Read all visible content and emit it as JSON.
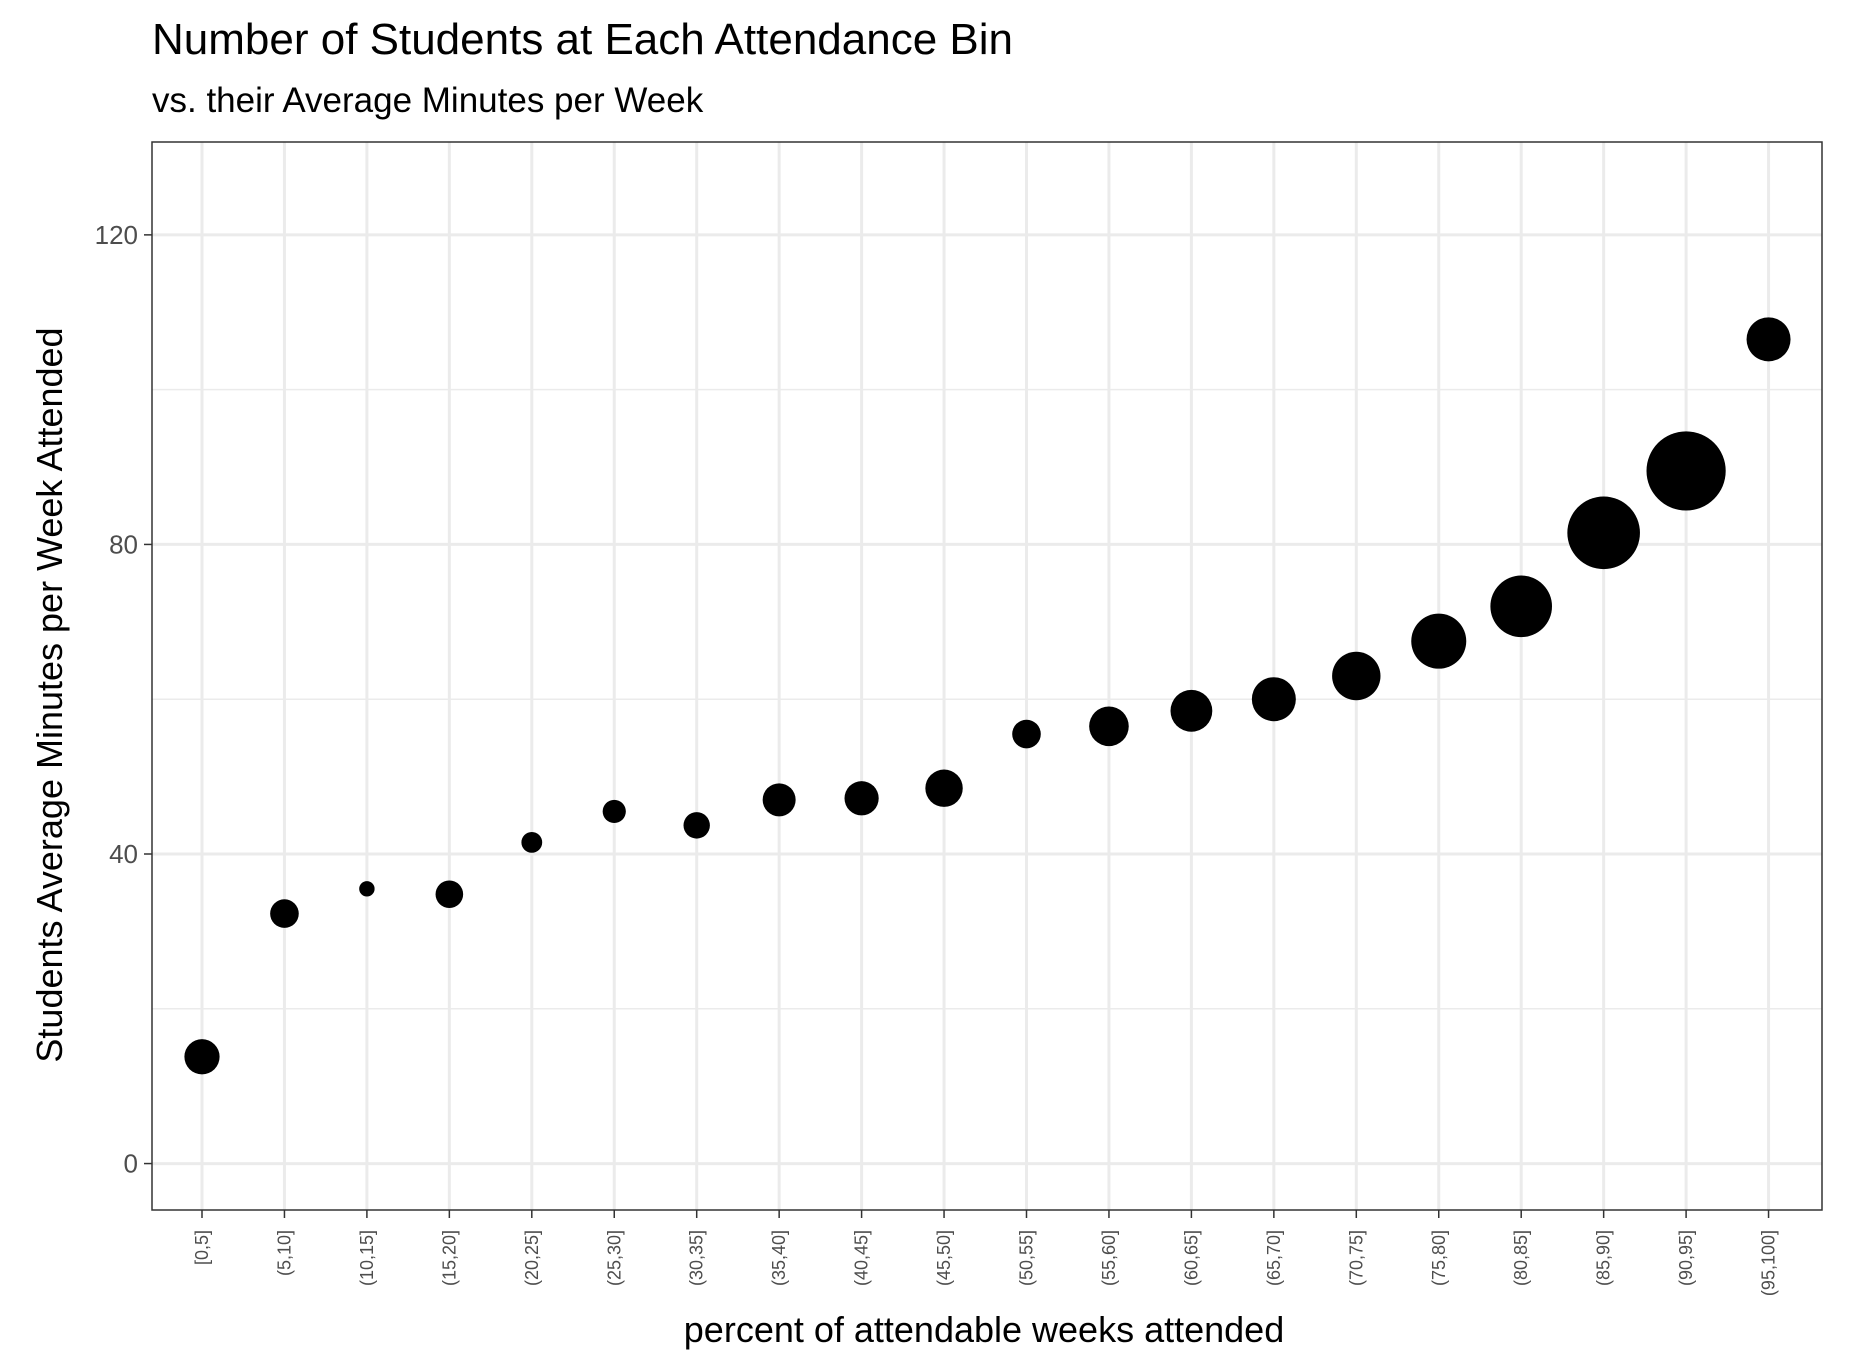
{
  "chart_data": {
    "type": "scatter",
    "title": "Number of Students at Each Attendance Bin",
    "subtitle": "vs. their Average Minutes per Week",
    "xlabel": "percent of attendable weeks attended",
    "ylabel": "Students Average Minutes per Week Attended",
    "categories": [
      "[0,5]",
      "(5,10]",
      "(10,15]",
      "(15,20]",
      "(20,25]",
      "(25,30]",
      "(30,35]",
      "(35,40]",
      "(40,45]",
      "(45,50]",
      "(50,55]",
      "(55,60]",
      "(60,65]",
      "(65,70]",
      "(70,75]",
      "(75,80]",
      "(80,85]",
      "(85,90]",
      "(90,95]",
      "(95,100]"
    ],
    "values": [
      13.8,
      32.3,
      35.5,
      34.8,
      41.5,
      45.5,
      43.7,
      47.0,
      47.2,
      48.5,
      55.5,
      56.5,
      58.5,
      60.0,
      63.0,
      67.5,
      72.0,
      81.5,
      89.5,
      106.5
    ],
    "point_size_rank": [
      3.2,
      2.6,
      1.4,
      2.5,
      1.9,
      2.1,
      2.4,
      3.0,
      3.1,
      3.4,
      2.6,
      3.6,
      3.8,
      4.0,
      4.4,
      5.0,
      5.6,
      6.6,
      7.2,
      4.0
    ],
    "ylim": [
      -6,
      132
    ],
    "yticks": [
      0,
      40,
      80,
      120
    ],
    "grid": true,
    "legend": "none",
    "point_color": "#000000",
    "grid_color": "#ebebeb",
    "panel_border_color": "#333333"
  }
}
